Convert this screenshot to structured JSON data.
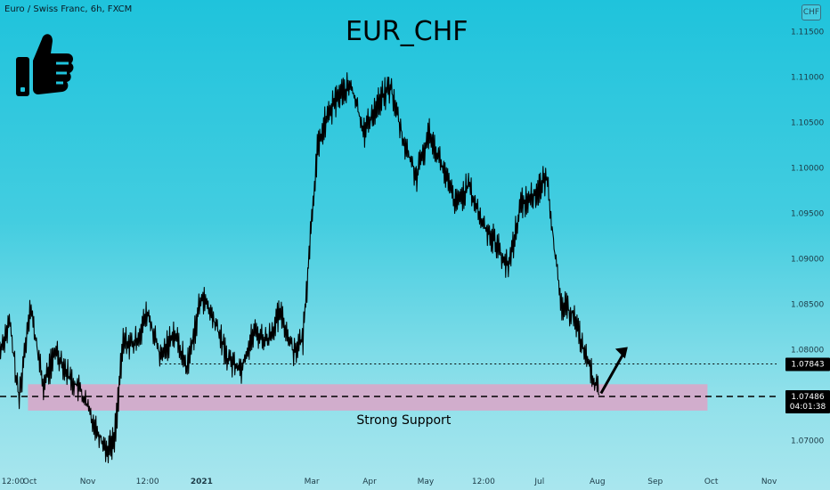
{
  "header": {
    "symbol_line": "Euro / Swiss Franc, 6h, FXCM",
    "currency_button": "CHF"
  },
  "title": "EUR_CHF",
  "icons": [
    "thumbs-up-icon",
    "arrow-up-right-icon"
  ],
  "colors": {
    "background_top": "#1fc3dc",
    "background_bottom": "#a9e6ee",
    "candles": "#000000",
    "support_zone": "#d8a7c9",
    "price_tag_bg": "#000000",
    "price_tag_text": "#ffffff"
  },
  "chart_data": {
    "type": "line",
    "title": "EUR_CHF",
    "xlabel": "",
    "ylabel": "",
    "ylim": [
      1.0675,
      1.1185
    ],
    "y_ticks": [
      "1.07000",
      "1.07500",
      "1.08000",
      "1.08500",
      "1.09000",
      "1.09500",
      "1.10000",
      "1.10500",
      "1.11000",
      "1.11500"
    ],
    "x_tick_labels": [
      "12:00",
      "Oct",
      "Nov",
      "12:00",
      "2021",
      "Mar",
      "Apr",
      "May",
      "12:00",
      "Jul",
      "Aug",
      "Sep",
      "Oct",
      "Nov"
    ],
    "x_start": "2020-09-15",
    "x_end": "2021-11-05",
    "series": [
      {
        "x": [
          "2020-09-15",
          "2020-09-20",
          "2020-09-25",
          "2020-10-01",
          "2020-10-08",
          "2020-10-15",
          "2020-10-22",
          "2020-10-28",
          "2020-11-04",
          "2020-11-11",
          "2020-11-15",
          "2020-11-20",
          "2020-11-26",
          "2020-12-03",
          "2020-12-10",
          "2020-12-17",
          "2020-12-24",
          "2021-01-01",
          "2021-01-08",
          "2021-01-15",
          "2021-01-22",
          "2021-01-29",
          "2021-02-05",
          "2021-02-12",
          "2021-02-19",
          "2021-02-24",
          "2021-03-01",
          "2021-03-04",
          "2021-03-08",
          "2021-03-15",
          "2021-03-22",
          "2021-03-29",
          "2021-04-05",
          "2021-04-12",
          "2021-04-19",
          "2021-04-26",
          "2021-05-03",
          "2021-05-10",
          "2021-05-17",
          "2021-05-24",
          "2021-05-31",
          "2021-06-07",
          "2021-06-14",
          "2021-06-21",
          "2021-06-28",
          "2021-07-05",
          "2021-07-12",
          "2021-07-19",
          "2021-07-26",
          "2021-08-02"
        ],
        "values": [
          1.08,
          1.083,
          1.0745,
          1.085,
          1.076,
          1.08,
          1.077,
          1.0755,
          1.072,
          1.069,
          1.07,
          1.081,
          1.0805,
          1.084,
          1.079,
          1.082,
          1.078,
          1.086,
          1.083,
          1.079,
          1.078,
          1.082,
          1.081,
          1.084,
          1.08,
          1.081,
          1.095,
          1.102,
          1.105,
          1.108,
          1.109,
          1.104,
          1.107,
          1.109,
          1.103,
          1.099,
          1.104,
          1.1,
          1.096,
          1.098,
          1.094,
          1.092,
          1.089,
          1.096,
          1.097,
          1.099,
          1.085,
          1.084,
          1.079,
          1.075
        ]
      }
    ],
    "resistance_level": 1.07843,
    "support_level": 1.07486,
    "support_zone": [
      1.0733,
      1.0762
    ],
    "price_tags": [
      "1.07843",
      "1.07486",
      "04:01:38"
    ],
    "annotation": "Strong Support",
    "grid": false,
    "legend": "none"
  }
}
